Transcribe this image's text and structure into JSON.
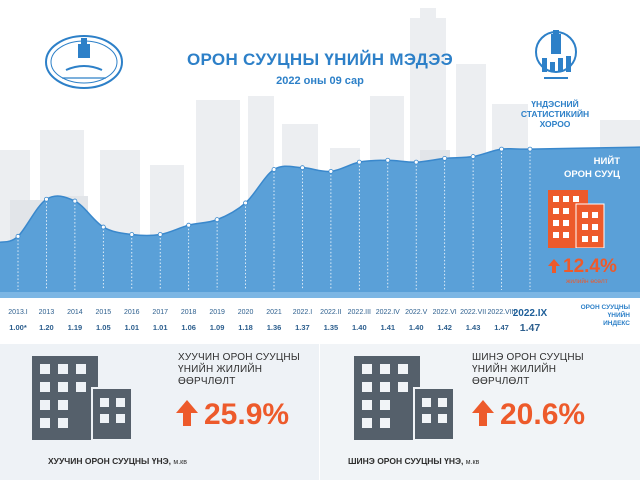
{
  "header": {
    "title": "ОРОН СУУЦНЫ ҮНИЙН МЭДЭЭ",
    "subtitle": "2022 оны 09 сар",
    "org_lines": [
      "ҮНДЭСНИЙ",
      "СТАТИСТИКИЙН",
      "ХОРОО"
    ]
  },
  "colors": {
    "accent_blue": "#2d80c8",
    "accent_orange": "#ed5a2b",
    "building_gray": "#55606b",
    "skyline_gray": "#e6e8eb",
    "area_blue": "#5aa0d8"
  },
  "icons": [
    "mongolbank-logo",
    "nso-logo",
    "building-icon",
    "up-arrow-icon"
  ],
  "chart_data": {
    "type": "area",
    "categories": [
      "2013.I",
      "2013",
      "2014",
      "2015",
      "2016",
      "2017",
      "2018",
      "2019",
      "2020",
      "2021",
      "2022.I",
      "2022.II",
      "2022.III",
      "2022.IV",
      "2022.V",
      "2022.VI",
      "2022.VII",
      "2022.VIII",
      "2022.IX"
    ],
    "values": [
      1.0,
      1.2,
      1.19,
      1.05,
      1.01,
      1.01,
      1.06,
      1.09,
      1.18,
      1.36,
      1.37,
      1.35,
      1.4,
      1.41,
      1.4,
      1.42,
      1.43,
      1.47,
      1.47
    ],
    "value_labels": [
      "1.00*",
      "1.20",
      "1.19",
      "1.05",
      "1.01",
      "1.01",
      "1.06",
      "1.09",
      "1.18",
      "1.36",
      "1.37",
      "1.35",
      "1.40",
      "1.41",
      "1.40",
      "1.42",
      "1.43",
      "1.47",
      "1.47"
    ],
    "series_label_lines": [
      "ОРОН СУУЦНЫ",
      "ҮНИЙН",
      "ИНДЕКС"
    ],
    "ylim": [
      0.7,
      1.6
    ],
    "grid": false,
    "legend": "none"
  },
  "total": {
    "label_lines": [
      "НИЙТ",
      "ОРОН СУУЦ"
    ],
    "change_pct": "12.4%",
    "caption": "жилийн өсөлт"
  },
  "old_housing": {
    "label_lines": [
      "ХУУЧИН ОРОН СУУЦНЫ",
      "ҮНИЙН ЖИЛИЙН",
      "ӨӨРЧЛӨЛТ"
    ],
    "change_pct": "25.9%",
    "price_label": "ХУУЧИН ОРОН СУУЦНЫ ҮНЭ,",
    "price_unit": "м.кв"
  },
  "new_housing": {
    "label_lines": [
      "ШИНЭ ОРОН СУУЦНЫ",
      "ҮНИЙН ЖИЛИЙН",
      "ӨӨРЧЛӨЛТ"
    ],
    "change_pct": "20.6%",
    "price_label": "ШИНЭ ОРОН СУУЦНЫ ҮНЭ,",
    "price_unit": "м.кв"
  }
}
